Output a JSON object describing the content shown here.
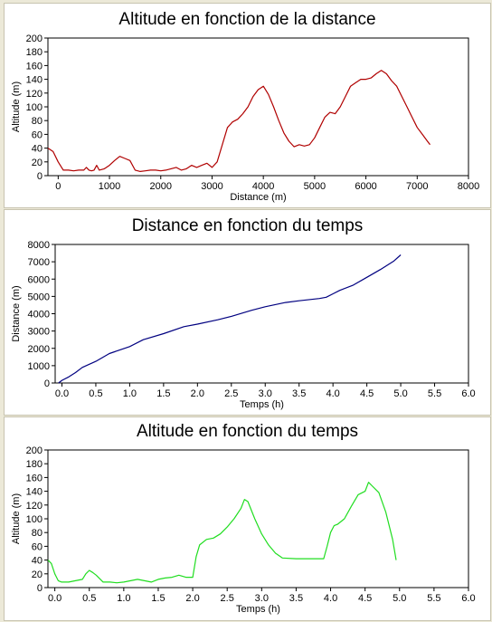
{
  "chart_data": [
    {
      "type": "line",
      "title": "Altitude en fonction de la distance",
      "xlabel": "Distance (m)",
      "ylabel": "Altitude (m)",
      "xlim": [
        -200,
        8000
      ],
      "ylim": [
        0,
        200
      ],
      "xticks": [
        0,
        1000,
        2000,
        3000,
        4000,
        5000,
        6000,
        7000,
        8000
      ],
      "yticks": [
        0,
        20,
        40,
        60,
        80,
        100,
        120,
        140,
        160,
        180,
        200
      ],
      "grid": false,
      "series": [
        {
          "color": "#b00000",
          "x": [
            -200,
            -100,
            0,
            100,
            200,
            300,
            400,
            500,
            550,
            600,
            650,
            700,
            750,
            800,
            900,
            1000,
            1100,
            1200,
            1300,
            1400,
            1500,
            1600,
            1700,
            1800,
            1900,
            2000,
            2100,
            2200,
            2300,
            2400,
            2500,
            2600,
            2700,
            2800,
            2900,
            3000,
            3100,
            3200,
            3300,
            3400,
            3500,
            3600,
            3700,
            3800,
            3900,
            4000,
            4100,
            4200,
            4300,
            4400,
            4500,
            4600,
            4700,
            4800,
            4900,
            5000,
            5100,
            5200,
            5300,
            5400,
            5500,
            5600,
            5700,
            5800,
            5900,
            6000,
            6100,
            6200,
            6300,
            6400,
            6500,
            6600,
            6700,
            6800,
            6900,
            7000,
            7100,
            7200,
            7250
          ],
          "y": [
            40,
            35,
            20,
            8,
            8,
            7,
            8,
            8,
            12,
            8,
            7,
            8,
            15,
            8,
            10,
            15,
            22,
            28,
            25,
            22,
            8,
            6,
            7,
            8,
            8,
            7,
            8,
            10,
            12,
            8,
            10,
            15,
            12,
            15,
            18,
            12,
            20,
            45,
            70,
            78,
            82,
            90,
            100,
            115,
            125,
            130,
            118,
            100,
            80,
            62,
            50,
            42,
            45,
            43,
            45,
            55,
            70,
            85,
            92,
            90,
            100,
            115,
            130,
            135,
            140,
            140,
            142,
            148,
            153,
            148,
            138,
            130,
            115,
            100,
            85,
            70,
            60,
            50,
            45
          ]
        }
      ]
    },
    {
      "type": "line",
      "title": "Distance en fonction du temps",
      "xlabel": "Temps (h)",
      "ylabel": "Distance (m)",
      "xlim": [
        -0.1,
        6.0
      ],
      "ylim": [
        0,
        8000
      ],
      "xticks": [
        0.0,
        0.5,
        1.0,
        1.5,
        2.0,
        2.5,
        3.0,
        3.5,
        4.0,
        4.5,
        5.0,
        5.5,
        6.0
      ],
      "yticks": [
        0,
        1000,
        2000,
        3000,
        4000,
        5000,
        6000,
        7000,
        8000
      ],
      "grid": false,
      "series": [
        {
          "color": "#000080",
          "x": [
            -0.05,
            0.0,
            0.1,
            0.2,
            0.3,
            0.5,
            0.7,
            1.0,
            1.2,
            1.5,
            1.8,
            2.0,
            2.3,
            2.5,
            2.8,
            3.0,
            3.3,
            3.5,
            3.8,
            3.9,
            4.0,
            4.1,
            4.3,
            4.5,
            4.7,
            4.9,
            5.0
          ],
          "y": [
            0,
            150,
            350,
            600,
            900,
            1250,
            1700,
            2100,
            2500,
            2850,
            3250,
            3400,
            3650,
            3850,
            4200,
            4400,
            4650,
            4750,
            4880,
            4950,
            5150,
            5350,
            5650,
            6100,
            6550,
            7050,
            7400
          ]
        }
      ]
    },
    {
      "type": "line",
      "title": "Altitude en fonction du temps",
      "xlabel": "Temps (h)",
      "ylabel": "Altitude (m)",
      "xlim": [
        -0.1,
        6.0
      ],
      "ylim": [
        0,
        200
      ],
      "xticks": [
        0.0,
        0.5,
        1.0,
        1.5,
        2.0,
        2.5,
        3.0,
        3.5,
        4.0,
        4.5,
        5.0,
        5.5,
        6.0
      ],
      "yticks": [
        0,
        20,
        40,
        60,
        80,
        100,
        120,
        140,
        160,
        180,
        200
      ],
      "grid": false,
      "series": [
        {
          "color": "#20dd20",
          "x": [
            -0.1,
            -0.05,
            0.0,
            0.05,
            0.1,
            0.2,
            0.3,
            0.4,
            0.45,
            0.5,
            0.55,
            0.6,
            0.7,
            0.8,
            0.9,
            1.0,
            1.1,
            1.2,
            1.3,
            1.4,
            1.5,
            1.6,
            1.7,
            1.8,
            1.9,
            2.0,
            2.05,
            2.1,
            2.2,
            2.3,
            2.4,
            2.5,
            2.6,
            2.7,
            2.75,
            2.8,
            2.9,
            3.0,
            3.1,
            3.2,
            3.3,
            3.5,
            3.7,
            3.9,
            3.95,
            4.0,
            4.05,
            4.1,
            4.2,
            4.3,
            4.4,
            4.5,
            4.55,
            4.6,
            4.7,
            4.8,
            4.9,
            4.95
          ],
          "y": [
            40,
            35,
            20,
            10,
            8,
            8,
            10,
            12,
            20,
            25,
            22,
            18,
            8,
            8,
            7,
            8,
            10,
            12,
            10,
            8,
            12,
            14,
            15,
            18,
            15,
            15,
            45,
            62,
            70,
            72,
            78,
            88,
            100,
            115,
            128,
            125,
            100,
            78,
            62,
            50,
            43,
            42,
            42,
            42,
            60,
            80,
            90,
            92,
            100,
            118,
            135,
            140,
            153,
            148,
            138,
            110,
            70,
            40
          ]
        }
      ]
    }
  ]
}
